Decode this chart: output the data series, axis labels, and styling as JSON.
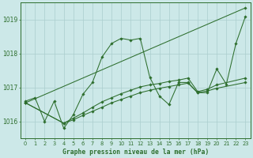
{
  "background_color": "#cce8e8",
  "grid_color": "#aacece",
  "line_color": "#2d6e2d",
  "title": "Graphe pression niveau de la mer (hPa)",
  "ylim": [
    1015.5,
    1019.5
  ],
  "yticks": [
    1016,
    1017,
    1018,
    1019
  ],
  "xlim": [
    -0.5,
    23.5
  ],
  "xticks": [
    0,
    1,
    2,
    3,
    4,
    5,
    6,
    7,
    8,
    9,
    10,
    11,
    12,
    13,
    14,
    15,
    16,
    17,
    18,
    19,
    20,
    21,
    22,
    23
  ],
  "lines": [
    {
      "x": [
        0,
        1,
        2,
        3,
        4,
        5,
        6,
        7,
        8,
        9,
        10,
        11,
        12,
        13,
        14,
        15,
        16,
        17,
        18,
        19,
        20,
        21,
        22,
        23
      ],
      "y": [
        1016.6,
        1016.7,
        1016.0,
        1016.6,
        1015.8,
        1016.2,
        1016.8,
        1017.15,
        1017.9,
        1018.3,
        1018.45,
        1018.4,
        1018.45,
        1017.3,
        1016.75,
        1016.5,
        1017.15,
        1017.15,
        1016.85,
        1016.85,
        1017.55,
        1017.1,
        1018.3,
        1019.1
      ]
    },
    {
      "x": [
        0,
        4,
        5,
        6,
        7,
        8,
        9,
        10,
        11,
        12,
        13,
        14,
        15,
        16,
        17,
        18,
        19,
        20,
        23
      ],
      "y": [
        1016.55,
        1015.95,
        1016.05,
        1016.18,
        1016.3,
        1016.42,
        1016.55,
        1016.65,
        1016.75,
        1016.85,
        1016.92,
        1016.98,
        1017.03,
        1017.08,
        1017.13,
        1016.85,
        1016.9,
        1016.98,
        1017.15
      ]
    },
    {
      "x": [
        0,
        4,
        5,
        6,
        7,
        8,
        9,
        10,
        11,
        12,
        13,
        14,
        15,
        16,
        17,
        18,
        19,
        20,
        23
      ],
      "y": [
        1016.55,
        1015.95,
        1016.1,
        1016.25,
        1016.42,
        1016.58,
        1016.7,
        1016.82,
        1016.92,
        1017.02,
        1017.08,
        1017.12,
        1017.18,
        1017.22,
        1017.28,
        1016.88,
        1016.95,
        1017.08,
        1017.28
      ]
    },
    {
      "x": [
        0,
        23
      ],
      "y": [
        1016.55,
        1019.35
      ]
    }
  ]
}
